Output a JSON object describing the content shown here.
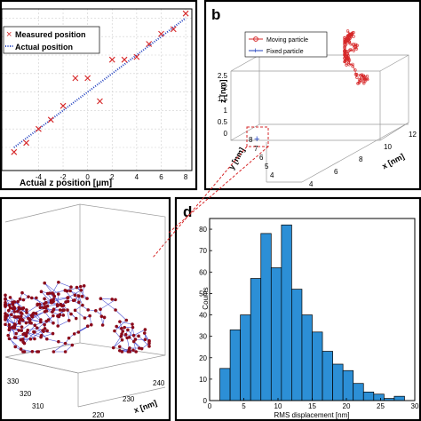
{
  "panels": {
    "a": {
      "letter": ""
    },
    "b": {
      "letter": "b"
    },
    "c": {
      "letter": ""
    },
    "d": {
      "letter": "d"
    }
  },
  "chart_data": [
    {
      "panel": "a",
      "type": "scatter",
      "title": "",
      "xlabel": "Actual z position [µm]",
      "ylabel": "",
      "x_ticks": [
        "-4",
        "-2",
        "0",
        "2",
        "4",
        "6",
        "8"
      ],
      "xlim": [
        -7,
        8.5
      ],
      "ylim": [
        -8.5,
        9
      ],
      "grid": true,
      "legend": {
        "placement": "top-left",
        "entries": [
          "Measured position",
          "Actual position"
        ]
      },
      "series": [
        {
          "name": "Measured position",
          "marker": "x",
          "color": "#d62728",
          "x": [
            -6,
            -5,
            -4,
            -3,
            -2,
            -1,
            0,
            1,
            2,
            3,
            4,
            5,
            6,
            7,
            8
          ],
          "y": [
            -6.5,
            -5.5,
            -4.0,
            -3.0,
            -1.5,
            1.5,
            1.5,
            -1.0,
            3.5,
            3.5,
            3.8,
            5.2,
            6.3,
            6.8,
            8.5
          ]
        },
        {
          "name": "Actual position",
          "marker": "dotted-line",
          "color": "#1f3fbf",
          "x": [
            -6,
            8
          ],
          "y": [
            -6,
            8
          ]
        }
      ]
    },
    {
      "panel": "b",
      "type": "scatter",
      "title": "",
      "xlabel": "x [nm]",
      "ylabel": "y [nm]",
      "zlabel": "z [nm]",
      "x_ticks": [
        "4",
        "6",
        "8",
        "10",
        "12"
      ],
      "y_ticks": [
        "4",
        "5",
        "6",
        "7",
        "8"
      ],
      "z_ticks": [
        "0",
        "0.5",
        "1",
        "1.5",
        "2",
        "2.5"
      ],
      "legend": {
        "placement": "top-left",
        "entries": [
          "Moving particle",
          "Fixed particle"
        ]
      },
      "series": [
        {
          "name": "Moving particle",
          "marker": "circle-line",
          "color": "#d62728"
        },
        {
          "name": "Fixed particle",
          "marker": "plus",
          "color": "#1f3fbf"
        }
      ]
    },
    {
      "panel": "c",
      "type": "scatter",
      "title": "",
      "xlabel": "x [nm]",
      "ylabel": "",
      "x_ticks": [
        "220",
        "230",
        "240"
      ],
      "y_ticks": [
        "310",
        "320",
        "330"
      ],
      "series": [
        {
          "name": "",
          "marker": "dot-line",
          "color": "#2e35c9",
          "point_color": "#8b0a1a"
        }
      ]
    },
    {
      "panel": "d",
      "type": "bar",
      "title": "",
      "xlabel": "RMS displacement [nm]",
      "ylabel": "Counts",
      "x_ticks": [
        0,
        5,
        10,
        15,
        20,
        25,
        30
      ],
      "y_ticks": [
        0,
        10,
        20,
        30,
        40,
        50,
        60,
        70,
        80
      ],
      "xlim": [
        0,
        30
      ],
      "ylim": [
        0,
        85
      ],
      "bin_width": 1.5,
      "bin_starts": [
        1.5,
        3,
        4.5,
        6,
        7.5,
        9,
        10.5,
        12,
        13.5,
        15,
        16.5,
        18,
        19.5,
        21,
        22.5,
        24,
        25.5,
        27
      ],
      "values": [
        15,
        33,
        40,
        57,
        78,
        62,
        82,
        52,
        40,
        32,
        23,
        17,
        14,
        8,
        4,
        3,
        1,
        2
      ],
      "color": "#2c8fd6"
    }
  ]
}
